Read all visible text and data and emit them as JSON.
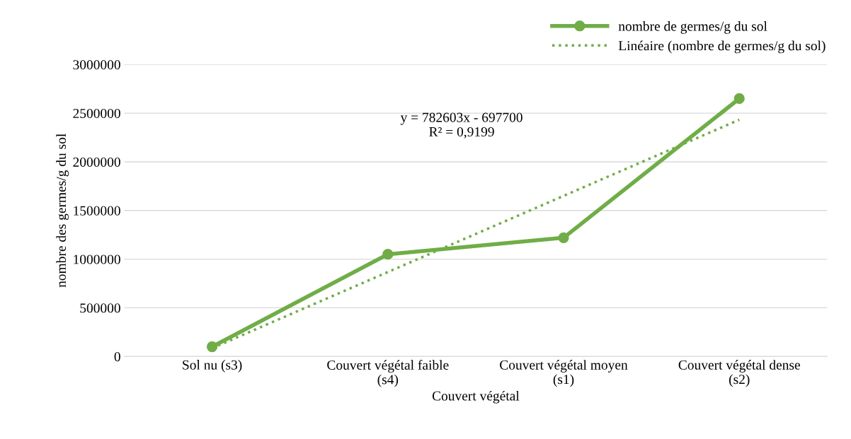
{
  "chart_data": {
    "type": "line",
    "xlabel": "Couvert végétal",
    "ylabel": "nombre des germes/g du sol",
    "categories": [
      "Sol nu (s3)",
      "Couvert végétal faible (s4)",
      "Couvert végétal moyen (s1)",
      "Couvert végétal dense (s2)"
    ],
    "series": [
      {
        "name": "nombre de germes/g du sol",
        "color": "#70ad47",
        "values": [
          100000,
          1050000,
          1220000,
          2650000
        ],
        "marker": "circle",
        "line_style": "solid"
      },
      {
        "name": "Linéaire (nombre de germes/g du sol)",
        "color": "#70ad47",
        "values": [
          84903,
          867506,
          1650109,
          2432712
        ],
        "marker": "none",
        "line_style": "dotted"
      }
    ],
    "ylim": [
      0,
      3000000
    ],
    "yticks": [
      0,
      500000,
      1000000,
      1500000,
      2000000,
      2500000,
      3000000
    ],
    "grid": "y",
    "legend": "top right",
    "annotations": [
      "y = 782603x - 697700\nR² = 0,9199"
    ]
  }
}
